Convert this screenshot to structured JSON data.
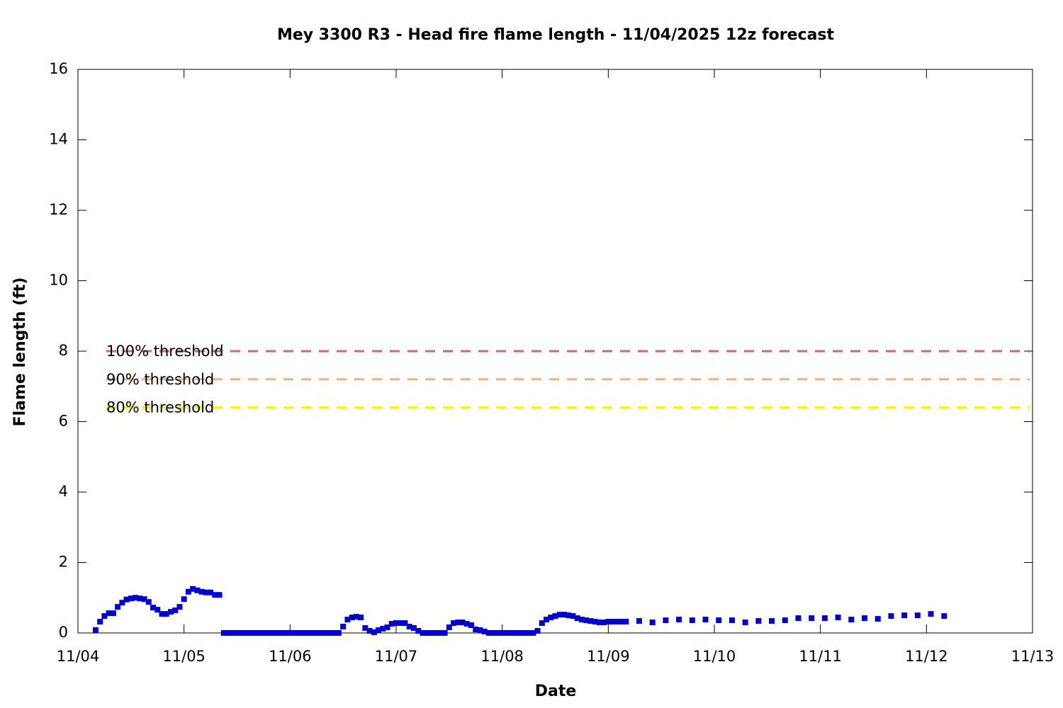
{
  "chart_data": {
    "type": "scatter",
    "title": "Mey 3300 R3 - Head fire flame length - 11/04/2025 12z forecast",
    "xlabel": "Date",
    "ylabel": "Flame length (ft)",
    "color": "#0000cc",
    "xlim": [
      0,
      216
    ],
    "xticks": [
      {
        "value": 0,
        "label": "11/04"
      },
      {
        "value": 24,
        "label": "11/05"
      },
      {
        "value": 48,
        "label": "11/06"
      },
      {
        "value": 72,
        "label": "11/07"
      },
      {
        "value": 96,
        "label": "11/08"
      },
      {
        "value": 120,
        "label": "11/09"
      },
      {
        "value": 144,
        "label": "11/10"
      },
      {
        "value": 168,
        "label": "11/11"
      },
      {
        "value": 192,
        "label": "11/12"
      },
      {
        "value": 216,
        "label": "11/13"
      }
    ],
    "ylim": [
      0,
      16
    ],
    "yticks": [
      0,
      2,
      4,
      6,
      8,
      10,
      12,
      14,
      16
    ],
    "thresholds": [
      {
        "label": "100% threshold",
        "value": 8,
        "color": "#d9607e"
      },
      {
        "label": "90% threshold",
        "value": 7.2,
        "color": "#f0b27a"
      },
      {
        "label": "80% threshold",
        "value": 6.4,
        "color": "#f5f500"
      }
    ],
    "x": [
      4,
      5,
      6,
      7,
      8,
      9,
      10,
      11,
      12,
      13,
      14,
      15,
      16,
      17,
      18,
      19,
      20,
      21,
      22,
      23,
      24,
      25,
      26,
      27,
      28,
      29,
      30,
      31,
      32,
      33,
      34,
      35,
      36,
      37,
      38,
      39,
      40,
      41,
      42,
      43,
      44,
      45,
      46,
      47,
      48,
      49,
      50,
      51,
      52,
      53,
      54,
      55,
      56,
      57,
      58,
      59,
      60,
      61,
      62,
      63,
      64,
      65,
      66,
      67,
      68,
      69,
      70,
      71,
      72,
      73,
      74,
      75,
      76,
      77,
      78,
      79,
      80,
      81,
      82,
      83,
      84,
      85,
      86,
      87,
      88,
      89,
      90,
      91,
      92,
      93,
      94,
      95,
      96,
      97,
      98,
      99,
      100,
      101,
      102,
      103,
      104,
      105,
      106,
      107,
      108,
      109,
      110,
      111,
      112,
      113,
      114,
      115,
      116,
      117,
      118,
      119,
      120,
      121,
      122,
      123,
      124,
      127,
      130,
      133,
      136,
      139,
      142,
      145,
      148,
      151,
      154,
      157,
      160,
      163,
      166,
      169,
      172,
      175,
      178,
      181,
      184,
      187,
      190,
      193,
      196
    ],
    "values": [
      0.08,
      0.32,
      0.48,
      0.56,
      0.56,
      0.74,
      0.86,
      0.95,
      0.98,
      1.0,
      0.98,
      0.96,
      0.88,
      0.72,
      0.66,
      0.54,
      0.54,
      0.6,
      0.64,
      0.74,
      0.96,
      1.17,
      1.25,
      1.21,
      1.17,
      1.15,
      1.15,
      1.08,
      1.08,
      0,
      0,
      0,
      0,
      0,
      0,
      0,
      0,
      0,
      0,
      0,
      0,
      0,
      0,
      0,
      0,
      0,
      0,
      0,
      0,
      0,
      0,
      0,
      0,
      0,
      0,
      0,
      0.18,
      0.38,
      0.44,
      0.46,
      0.44,
      0.14,
      0.06,
      0.02,
      0.08,
      0.12,
      0.16,
      0.26,
      0.28,
      0.28,
      0.28,
      0.18,
      0.14,
      0.06,
      0,
      0,
      0,
      0,
      0,
      0,
      0.16,
      0.28,
      0.3,
      0.3,
      0.26,
      0.22,
      0.1,
      0.08,
      0.04,
      0,
      0,
      0,
      0,
      0,
      0,
      0,
      0,
      0,
      0,
      0,
      0.06,
      0.28,
      0.38,
      0.44,
      0.48,
      0.52,
      0.52,
      0.5,
      0.48,
      0.42,
      0.38,
      0.36,
      0.34,
      0.32,
      0.3,
      0.3,
      0.32,
      0.32,
      0.32,
      0.32,
      0.32,
      0.34,
      0.3,
      0.36,
      0.38,
      0.36,
      0.38,
      0.36,
      0.36,
      0.3,
      0.34,
      0.34,
      0.36,
      0.42,
      0.42,
      0.42,
      0.44,
      0.38,
      0.42,
      0.4,
      0.48,
      0.5,
      0.5,
      0.54,
      0.48
    ]
  }
}
